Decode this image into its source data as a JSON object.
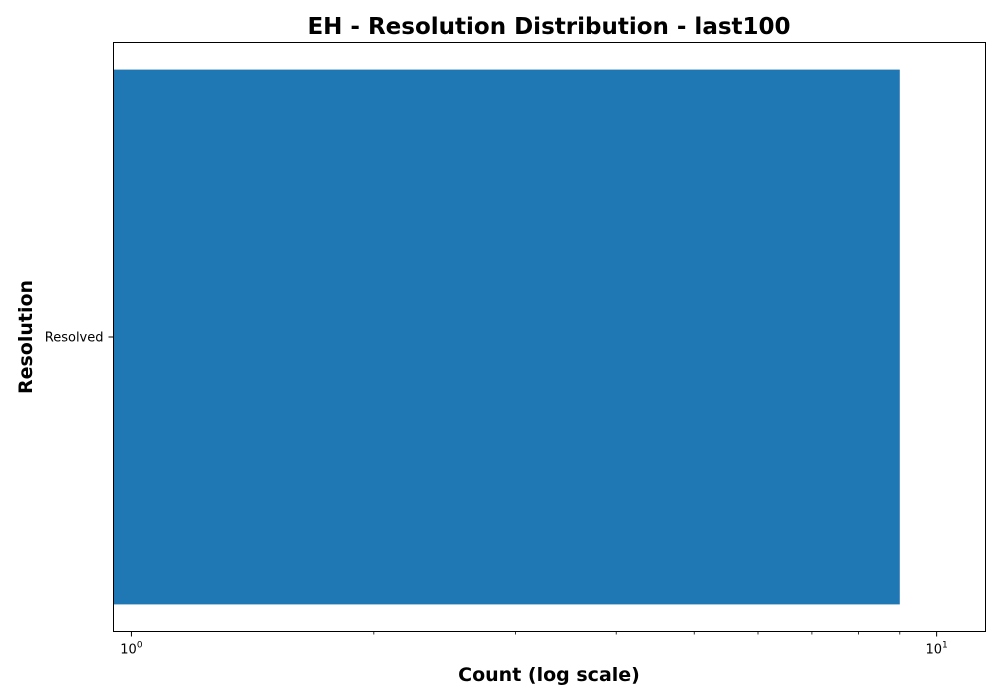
{
  "chart_data": {
    "type": "bar",
    "orientation": "horizontal",
    "title": "EH - Resolution Distribution - last100",
    "xlabel": "Count (log scale)",
    "ylabel": "Resolution",
    "xscale": "log",
    "xlim": [
      0.95,
      11.5
    ],
    "categories": [
      "Resolved"
    ],
    "series": [
      {
        "values": [
          9
        ]
      }
    ],
    "x_major_ticks": [
      {
        "value": 1,
        "base": "10",
        "exp": "0"
      },
      {
        "value": 10,
        "base": "10",
        "exp": "1"
      }
    ],
    "x_minor_ticks": [
      2,
      3,
      4,
      5,
      6,
      7,
      8,
      9
    ],
    "grid": false,
    "bar_color": "#1f77b4"
  }
}
